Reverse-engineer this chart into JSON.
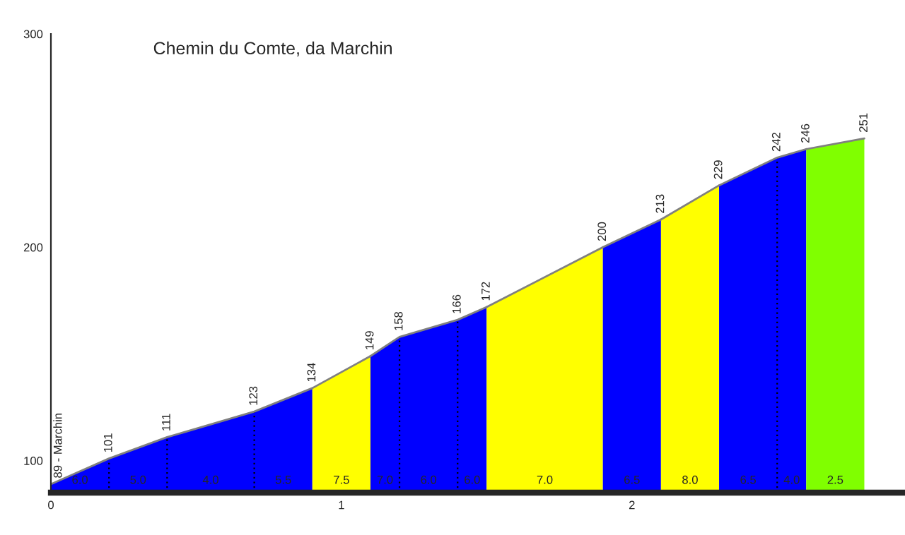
{
  "chart_data": {
    "type": "area",
    "title": "Chemin du Comte, da Marchin",
    "series": [
      {
        "color": "#0000ff",
        "x": [
          0,
          0.2,
          0.4,
          0.7,
          0.9
        ],
        "values": [
          89,
          101,
          111,
          123,
          134
        ],
        "value_labels": [
          "89 - Marchin",
          "101",
          "111",
          "123",
          "134"
        ]
      },
      {
        "color": "#ffff00",
        "x": [
          0.9,
          1.1
        ],
        "values": [
          134,
          149
        ],
        "value_labels": [
          null,
          "149"
        ]
      },
      {
        "color": "#0000ff",
        "x": [
          1.1,
          1.2,
          1.4,
          1.5
        ],
        "values": [
          149,
          158,
          166,
          172
        ],
        "value_labels": [
          null,
          "158",
          "166",
          "172"
        ]
      },
      {
        "color": "#ffff00",
        "x": [
          1.5,
          1.9
        ],
        "values": [
          172,
          200
        ],
        "value_labels": [
          null,
          "200"
        ]
      },
      {
        "color": "#0000ff",
        "x": [
          1.9,
          2.1
        ],
        "values": [
          200,
          213
        ],
        "value_labels": [
          null,
          "213"
        ]
      },
      {
        "color": "#ffff00",
        "x": [
          2.1,
          2.3
        ],
        "values": [
          213,
          229
        ],
        "value_labels": [
          null,
          "229"
        ]
      },
      {
        "color": "#0000ff",
        "x": [
          2.3,
          2.5,
          2.6
        ],
        "values": [
          229,
          242,
          246
        ],
        "value_labels": [
          null,
          "242",
          "246"
        ]
      },
      {
        "color": "#80ff00",
        "x": [
          2.6,
          2.8
        ],
        "values": [
          246,
          251
        ],
        "value_labels": [
          null,
          "251"
        ]
      }
    ],
    "annotations": [
      {
        "text": "6.0",
        "x": 0.1,
        "y": 88
      },
      {
        "text": "5.0",
        "x": 0.3,
        "y": 88
      },
      {
        "text": "4.0",
        "x": 0.55,
        "y": 88
      },
      {
        "text": "5.5",
        "x": 0.8,
        "y": 88
      },
      {
        "text": "7.5",
        "x": 1.0,
        "y": 88
      },
      {
        "text": "7.0",
        "x": 1.15,
        "y": 88
      },
      {
        "text": "6.0",
        "x": 1.3,
        "y": 88
      },
      {
        "text": "6.0",
        "x": 1.45,
        "y": 88
      },
      {
        "text": "7.0",
        "x": 1.7,
        "y": 88
      },
      {
        "text": "6.5",
        "x": 2.0,
        "y": 88
      },
      {
        "text": "8.0",
        "x": 2.2,
        "y": 88
      },
      {
        "text": "6.5",
        "x": 2.4,
        "y": 88
      },
      {
        "text": "4.0",
        "x": 2.55,
        "y": 88
      },
      {
        "text": "2.5",
        "x": 2.7,
        "y": 88
      }
    ],
    "xlim": [
      0,
      2.94
    ],
    "xticks": [
      0,
      1,
      2
    ],
    "ylim": [
      85,
      300
    ],
    "yticks": [
      100,
      200,
      300
    ],
    "grid": false,
    "legend": false
  }
}
